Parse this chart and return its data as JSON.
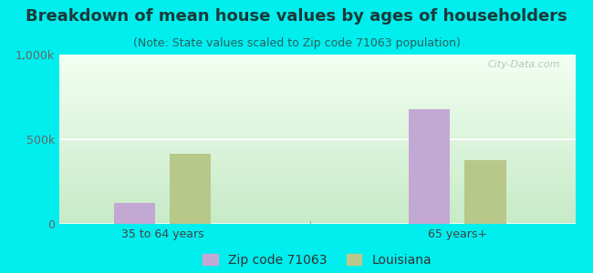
{
  "title": "Breakdown of mean house values by ages of householders",
  "subtitle": "(Note: State values scaled to Zip code 71063 population)",
  "categories": [
    "35 to 64 years",
    "65 years+"
  ],
  "zip_values": [
    125000,
    680000
  ],
  "state_values": [
    415000,
    375000
  ],
  "zip_color": "#c4a8d4",
  "state_color": "#b8c88a",
  "background_color": "#00eeee",
  "ylim": [
    0,
    1000000
  ],
  "yticks": [
    0,
    500000,
    1000000
  ],
  "ytick_labels": [
    "0",
    "500k",
    "1,000k"
  ],
  "watermark": "City-Data.com",
  "legend_zip": "Zip code 71063",
  "legend_state": "Louisiana",
  "title_fontsize": 13,
  "subtitle_fontsize": 9,
  "tick_fontsize": 9,
  "legend_fontsize": 10
}
